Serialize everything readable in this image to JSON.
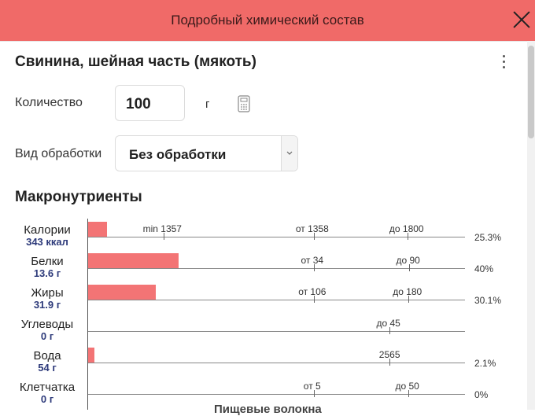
{
  "dialog": {
    "title": "Подробный химический состав",
    "close_icon": "close-icon"
  },
  "food": {
    "name": "Свинина, шейная часть (мякоть)",
    "more_icon": "more-vertical-icon"
  },
  "quantity": {
    "label": "Количество",
    "value": "100",
    "unit": "г",
    "calc_icon": "calculator-icon"
  },
  "processing": {
    "label": "Вид обработки",
    "value": "Без обработки",
    "arrow_icon": "chevron-down-icon"
  },
  "section": {
    "title": "Макронутриенты",
    "bottom_cut_text": "Пищевые волокна"
  },
  "nutrients": [
    {
      "name": "Калории",
      "value": "343 ккал",
      "bar_fraction": 0.05,
      "marks": [
        "min 1357",
        "от 1358",
        "до 1800"
      ],
      "percent": "25.3%"
    },
    {
      "name": "Белки",
      "value": "13.6 г",
      "bar_fraction": 0.24,
      "marks": [
        "от 34",
        "до 90"
      ],
      "percent": "40%"
    },
    {
      "name": "Жиры",
      "value": "31.9 г",
      "bar_fraction": 0.18,
      "marks": [
        "от 106",
        "до 180"
      ],
      "percent": "30.1%"
    },
    {
      "name": "Углеводы",
      "value": "0 г",
      "bar_fraction": 0,
      "marks": [
        "до 45"
      ],
      "percent": ""
    },
    {
      "name": "Вода",
      "value": "54 г",
      "bar_fraction": 0.016,
      "marks": [
        "2565"
      ],
      "percent": "2.1%"
    },
    {
      "name": "Клетчатка",
      "value": "0 г",
      "bar_fraction": 0,
      "marks": [
        "от 5",
        "до 50"
      ],
      "percent": "0%"
    }
  ]
}
